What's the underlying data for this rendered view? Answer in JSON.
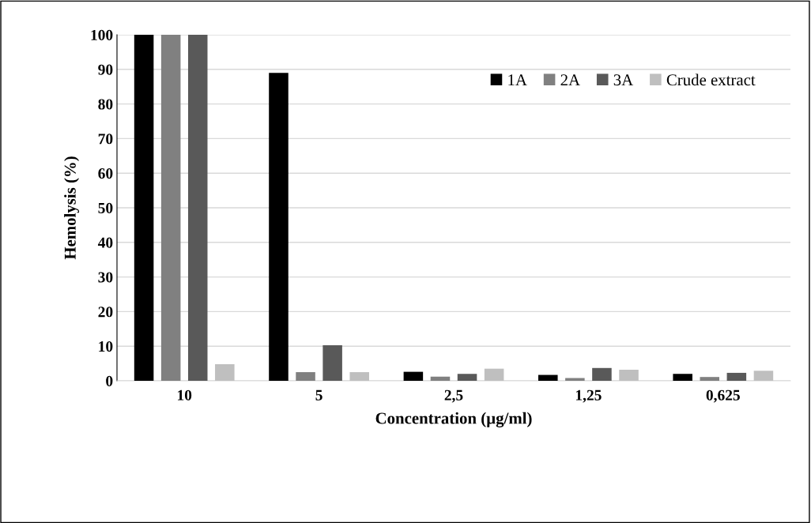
{
  "chart_data": {
    "type": "bar",
    "xlabel": "Concentration (µg/ml)",
    "ylabel": "Hemolysis (%)",
    "categories": [
      "10",
      "5",
      "2,5",
      "1,25",
      "0,625"
    ],
    "series": [
      {
        "name": "1A",
        "color": "#000000",
        "values": [
          100,
          89,
          2.6,
          1.7,
          2.0
        ]
      },
      {
        "name": "2A",
        "color": "#808080",
        "values": [
          100,
          2.5,
          1.2,
          0.8,
          1.1
        ]
      },
      {
        "name": "3A",
        "color": "#595959",
        "values": [
          100,
          10.3,
          2.0,
          3.7,
          2.3
        ]
      },
      {
        "name": "Crude extract",
        "color": "#bfbfbf",
        "values": [
          4.8,
          2.5,
          3.5,
          3.2,
          2.9
        ]
      }
    ],
    "ylim": [
      0,
      100
    ],
    "yticks": [
      0,
      10,
      20,
      30,
      40,
      50,
      60,
      70,
      80,
      90,
      100
    ],
    "grid": "y",
    "legend": "top right"
  }
}
